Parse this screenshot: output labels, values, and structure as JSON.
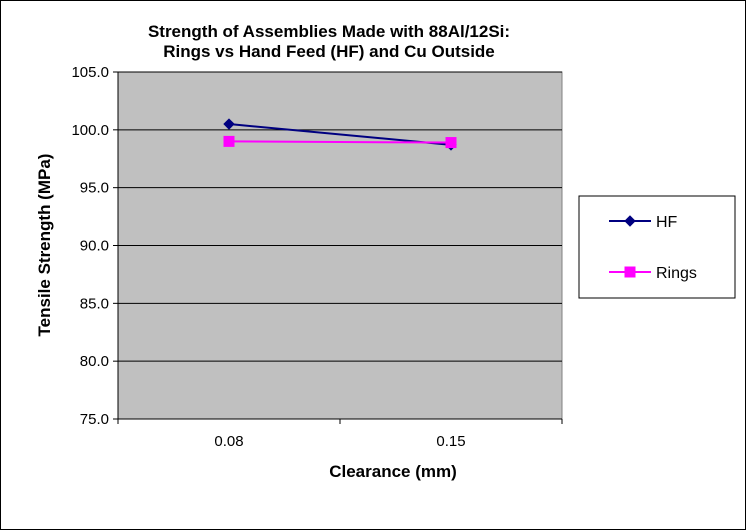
{
  "chart_data": {
    "type": "line",
    "title_lines": [
      "Strength of Assemblies  Made  with 88Al/12Si:",
      "Rings vs Hand Feed (HF) and Cu Outside"
    ],
    "xlabel": "Clearance (mm)",
    "ylabel": "Tensile Strength (MPa)",
    "categories": [
      "0.08",
      "0.15"
    ],
    "ylim": [
      75.0,
      105.0
    ],
    "yticks": [
      "75.0",
      "80.0",
      "85.0",
      "90.0",
      "95.0",
      "100.0",
      "105.0"
    ],
    "grid": "horizontal",
    "plot_background": "#c0c0c0",
    "legend_position": "right",
    "series": [
      {
        "name": "HF",
        "values": [
          100.5,
          98.7
        ],
        "color": "#000080",
        "marker": "diamond"
      },
      {
        "name": "Rings",
        "values": [
          99.0,
          98.9
        ],
        "color": "#ff00ff",
        "marker": "square"
      }
    ]
  }
}
